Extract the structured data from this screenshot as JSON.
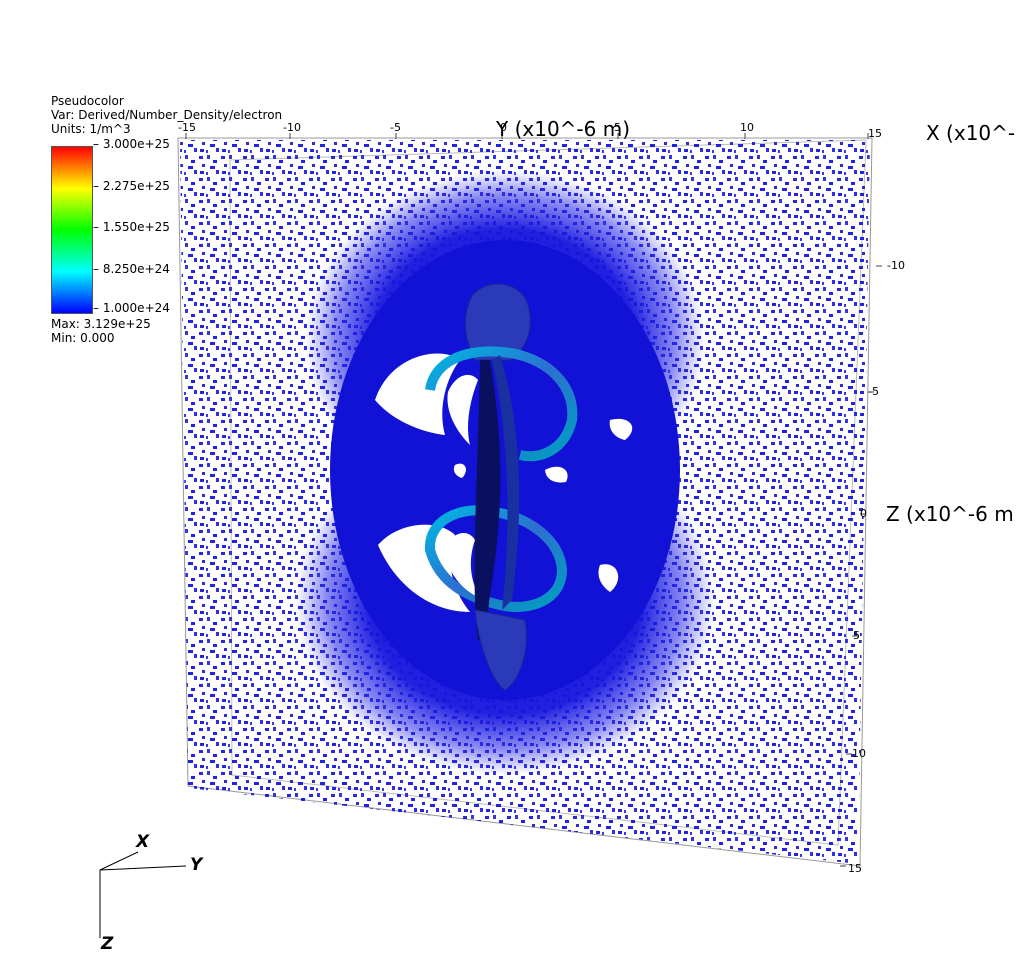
{
  "legend": {
    "plot_type": "Pseudocolor",
    "variable": "Var: Derived/Number_Density/electron",
    "units": "Units: 1/m^3",
    "ticks": [
      "3.000e+25",
      "2.275e+25",
      "1.550e+25",
      "8.250e+24",
      "1.000e+24"
    ],
    "max": "Max:  3.129e+25",
    "min": "Min:  0.000",
    "colormap": [
      "#ff0000",
      "#ffff00",
      "#00ff00",
      "#00ffff",
      "#0000ff"
    ]
  },
  "axes": {
    "y_title": "Y (x10^-6 m)",
    "x_title": "X (x10^-",
    "z_title": "Z (x10^-6 m",
    "top_ticks": [
      "-15",
      "-10",
      "-5",
      "0",
      "5",
      "10",
      "15"
    ],
    "right_ticks": [
      "-10",
      "-5",
      "0",
      "5",
      "10",
      "15"
    ]
  },
  "triad": {
    "x": "X",
    "y": "Y",
    "z": "Z"
  },
  "colors": {
    "density": "#1010e0",
    "inner": "#00aaff",
    "background": "#ffffff"
  }
}
